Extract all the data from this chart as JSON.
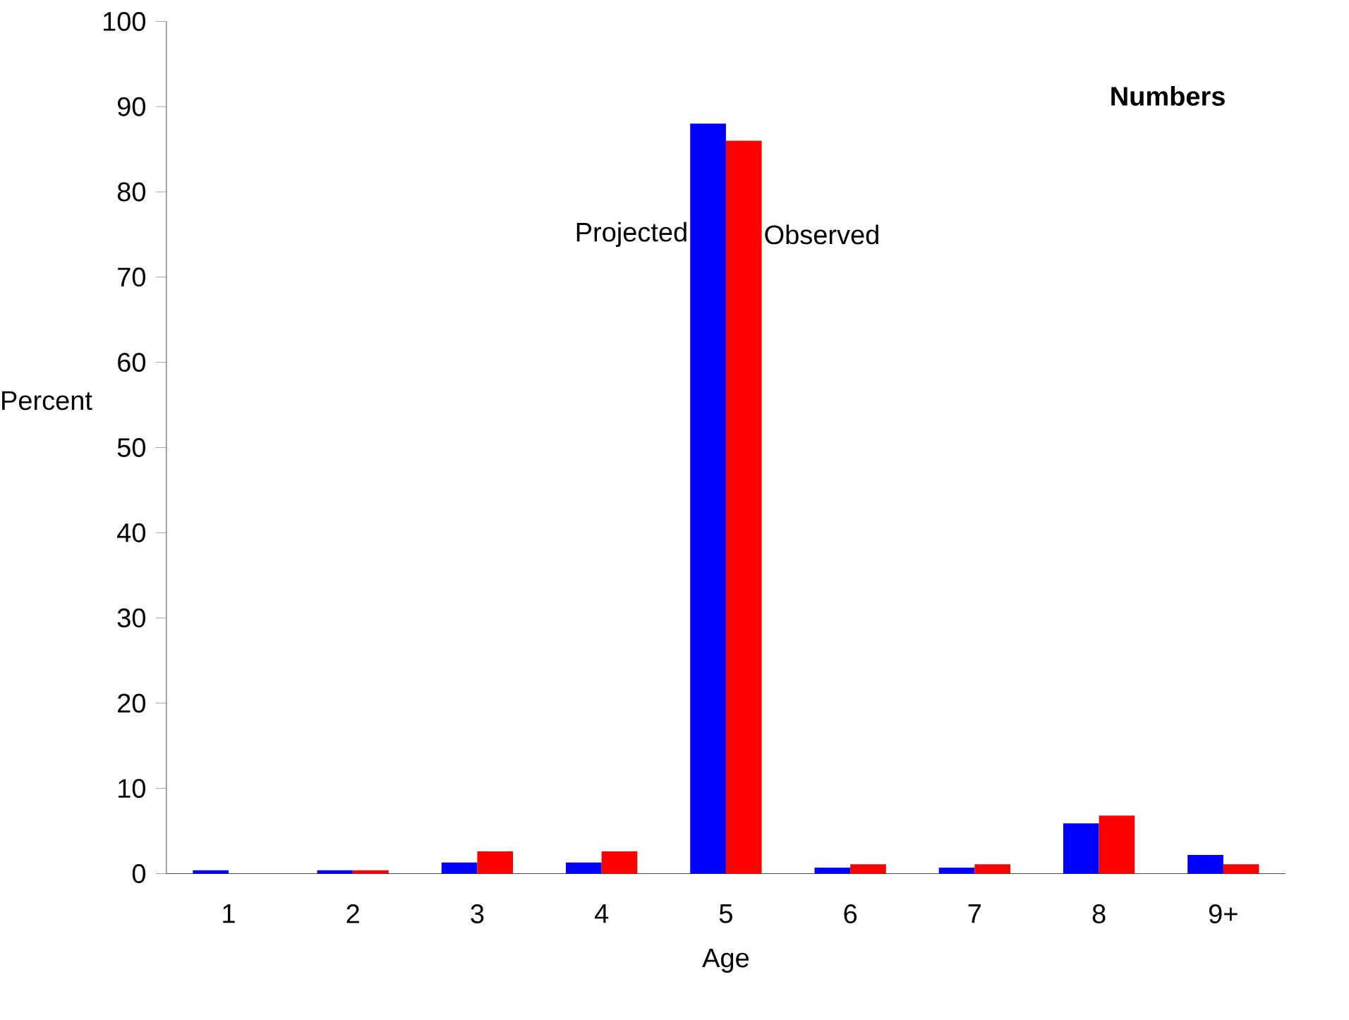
{
  "chart_data": {
    "type": "bar",
    "title": "Numbers",
    "xlabel": "Age",
    "ylabel": "Percent",
    "categories": [
      "1",
      "2",
      "3",
      "4",
      "5",
      "6",
      "7",
      "8",
      "9+"
    ],
    "series": [
      {
        "name": "Projected",
        "color": "#0000ff",
        "values": [
          0.4,
          0.4,
          1.3,
          1.3,
          88,
          0.7,
          0.7,
          5.9,
          2.2
        ]
      },
      {
        "name": "Observed",
        "color": "#ff0000",
        "values": [
          0,
          0.4,
          2.6,
          2.6,
          86,
          1.1,
          1.1,
          6.8,
          1.1
        ]
      }
    ],
    "ylim": [
      0,
      100
    ],
    "yticks": [
      0,
      10,
      20,
      30,
      40,
      50,
      60,
      70,
      80,
      90,
      100
    ],
    "grid": false,
    "legend": false
  }
}
